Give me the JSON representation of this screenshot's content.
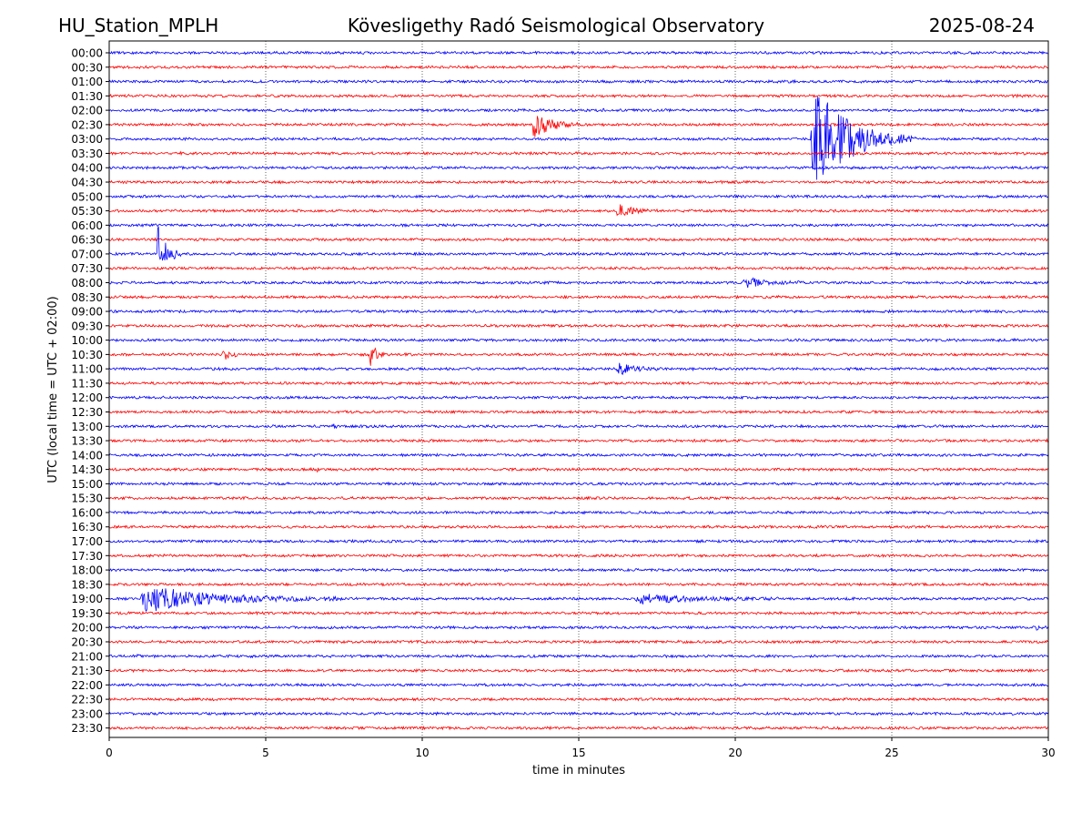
{
  "header": {
    "station": "HU_Station_MPLH",
    "observatory": "Kövesligethy Radó Seismological Observatory",
    "date": "2025-08-24"
  },
  "chart_data": {
    "type": "line",
    "title": "Kövesligethy Radó Seismological Observatory",
    "xlabel": "time in minutes",
    "ylabel": "UTC (local time = UTC + 02:00)",
    "xlim": [
      0,
      30
    ],
    "x_ticks": [
      0,
      5,
      10,
      15,
      20,
      25,
      30
    ],
    "x_grid": "dotted vertical gridlines at every 5 minutes",
    "trace_colors": [
      "#0000ff",
      "#ff0000"
    ],
    "rows": [
      "00:00",
      "00:30",
      "01:00",
      "01:30",
      "02:00",
      "02:30",
      "03:00",
      "03:30",
      "04:00",
      "04:30",
      "05:00",
      "05:30",
      "06:00",
      "06:30",
      "07:00",
      "07:30",
      "08:00",
      "08:30",
      "09:00",
      "09:30",
      "10:00",
      "10:30",
      "11:00",
      "11:30",
      "12:00",
      "12:30",
      "13:00",
      "13:30",
      "14:00",
      "14:30",
      "15:00",
      "15:30",
      "16:00",
      "16:30",
      "17:00",
      "17:30",
      "18:00",
      "18:30",
      "19:00",
      "19:30",
      "20:00",
      "20:30",
      "21:00",
      "21:30",
      "22:00",
      "22:30",
      "23:00",
      "23:30"
    ],
    "events": [
      {
        "row": "02:00",
        "start": 15.6,
        "duration": 0.4,
        "amplitude": 3
      },
      {
        "row": "02:30",
        "start": 13.5,
        "duration": 1.6,
        "amplitude": 18
      },
      {
        "row": "03:00",
        "start": 22.4,
        "duration": 3.4,
        "amplitude": 65
      },
      {
        "row": "03:30",
        "start": 2.2,
        "duration": 0.4,
        "amplitude": 2
      },
      {
        "row": "05:30",
        "start": 16.2,
        "duration": 1.3,
        "amplitude": 9
      },
      {
        "row": "07:00",
        "start": 1.5,
        "duration": 0.8,
        "amplitude": 40
      },
      {
        "row": "08:00",
        "start": 20.2,
        "duration": 2.0,
        "amplitude": 7
      },
      {
        "row": "10:30",
        "start": 3.6,
        "duration": 0.7,
        "amplitude": 8
      },
      {
        "row": "10:30",
        "start": 8.3,
        "duration": 0.5,
        "amplitude": 25
      },
      {
        "row": "11:00",
        "start": 16.2,
        "duration": 1.4,
        "amplitude": 8
      },
      {
        "row": "13:00",
        "start": 7.1,
        "duration": 0.3,
        "amplitude": 5
      },
      {
        "row": "14:30",
        "start": 6.6,
        "duration": 0.2,
        "amplitude": 3
      },
      {
        "row": "19:00",
        "start": 0.95,
        "duration": 6.5,
        "amplitude": 16
      },
      {
        "row": "19:00",
        "start": 16.8,
        "duration": 4.7,
        "amplitude": 6
      },
      {
        "row": "20:00",
        "start": 29.6,
        "duration": 0.4,
        "amplitude": 3
      },
      {
        "row": "21:00",
        "start": 0.7,
        "duration": 0.4,
        "amplitude": 3
      }
    ]
  }
}
